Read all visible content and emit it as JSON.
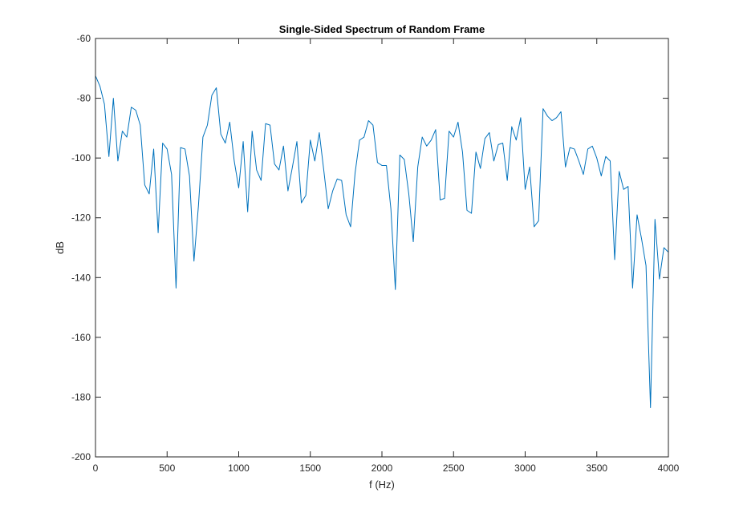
{
  "chart_data": {
    "type": "line",
    "title": "Single-Sided Spectrum of Random Frame",
    "xlabel": "f (Hz)",
    "ylabel": "dB",
    "xlim": [
      0,
      4000
    ],
    "ylim": [
      -200,
      -60
    ],
    "xticks": [
      0,
      500,
      1000,
      1500,
      2000,
      2500,
      3000,
      3500,
      4000
    ],
    "yticks": [
      -200,
      -180,
      -160,
      -140,
      -120,
      -100,
      -80,
      -60
    ],
    "grid": false,
    "box": true,
    "colors": {
      "series": "#0072bd",
      "axes": "#262626",
      "background": "#ffffff"
    },
    "series": [
      {
        "x": [
          0,
          31.25,
          62.5,
          93.75,
          125,
          156.25,
          187.5,
          218.75,
          250,
          281.25,
          312.5,
          343.75,
          375,
          406.25,
          437.5,
          468.75,
          500,
          531.25,
          562.5,
          593.75,
          625,
          656.25,
          687.5,
          718.75,
          750,
          781.25,
          812.5,
          843.75,
          875,
          906.25,
          937.5,
          968.75,
          1000,
          1031.25,
          1062.5,
          1093.75,
          1125,
          1156.25,
          1187.5,
          1218.75,
          1250,
          1281.25,
          1312.5,
          1343.75,
          1375,
          1406.25,
          1437.5,
          1468.75,
          1500,
          1531.25,
          1562.5,
          1593.75,
          1625,
          1656.25,
          1687.5,
          1718.75,
          1750,
          1781.25,
          1812.5,
          1843.75,
          1875,
          1906.25,
          1937.5,
          1968.75,
          2000,
          2031.25,
          2062.5,
          2093.75,
          2125,
          2156.25,
          2187.5,
          2218.75,
          2250,
          2281.25,
          2312.5,
          2343.75,
          2375,
          2406.25,
          2437.5,
          2468.75,
          2500,
          2531.25,
          2562.5,
          2593.75,
          2625,
          2656.25,
          2687.5,
          2718.75,
          2750,
          2781.25,
          2812.5,
          2843.75,
          2875,
          2906.25,
          2937.5,
          2968.75,
          3000,
          3031.25,
          3062.5,
          3093.75,
          3125,
          3156.25,
          3187.5,
          3218.75,
          3250,
          3281.25,
          3312.5,
          3343.75,
          3375,
          3406.25,
          3437.5,
          3468.75,
          3500,
          3531.25,
          3562.5,
          3593.75,
          3625,
          3656.25,
          3687.5,
          3718.75,
          3750,
          3781.25,
          3812.5,
          3843.75,
          3875,
          3906.25,
          3937.5,
          3968.75,
          4000
        ],
        "y": [
          -72.5,
          -76,
          -82,
          -99.5,
          -80,
          -101,
          -91,
          -93,
          -83,
          -84,
          -89,
          -109,
          -112,
          -97,
          -125,
          -95,
          -97,
          -105.5,
          -143.5,
          -96.5,
          -97,
          -106,
          -134.5,
          -116,
          -93,
          -89,
          -79,
          -76.5,
          -92,
          -95,
          -88,
          -101,
          -110,
          -94.5,
          -118,
          -91,
          -104,
          -107.5,
          -88.5,
          -89,
          -102,
          -104,
          -96,
          -111,
          -103,
          -94.5,
          -115,
          -112.5,
          -94,
          -101,
          -91.5,
          -104,
          -117,
          -111,
          -107,
          -107.5,
          -119,
          -123,
          -105,
          -94,
          -93,
          -87.5,
          -89,
          -101.5,
          -102.5,
          -102.5,
          -117,
          -144,
          -99,
          -100.5,
          -112,
          -128,
          -103,
          -93,
          -96,
          -94,
          -90.5,
          -114,
          -113.5,
          -91,
          -93,
          -88,
          -98,
          -117.5,
          -118.5,
          -98,
          -103.5,
          -93.5,
          -91.5,
          -101,
          -95.5,
          -95,
          -107.5,
          -89.5,
          -94,
          -86.5,
          -110.5,
          -103,
          -123,
          -121,
          -83.5,
          -86,
          -87.5,
          -86.5,
          -84.5,
          -103,
          -96.5,
          -97,
          -101,
          -105.5,
          -97,
          -96,
          -100,
          -106,
          -99.5,
          -101,
          -134,
          -104.5,
          -110.5,
          -109.5,
          -143.5,
          -119,
          -127,
          -136,
          -183.5,
          -120.5,
          -140.5,
          -130,
          -131.5
        ]
      }
    ]
  }
}
